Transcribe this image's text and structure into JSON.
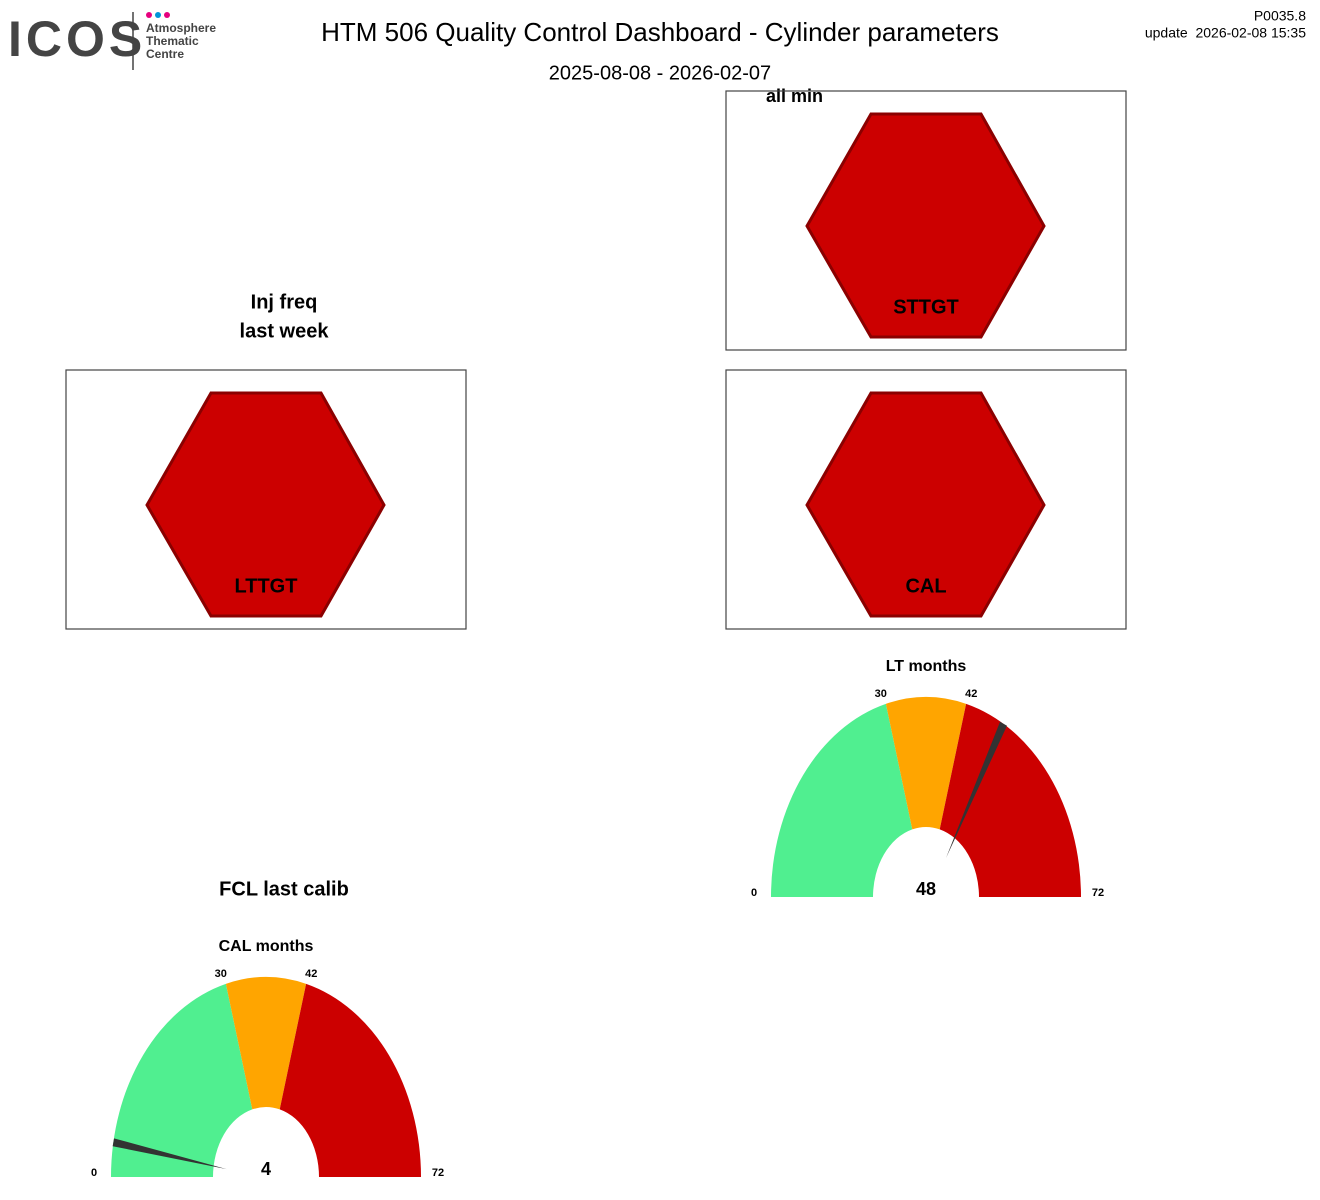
{
  "header": {
    "logo": "ICOS",
    "logo_lines": [
      "Atmosphere",
      "Thematic",
      "Centre"
    ],
    "title": "HTM 506 Quality Control Dashboard - Cylinder parameters",
    "subtitle": "2025-08-08 - 2026-02-07",
    "version": "P0035.8",
    "update": "update  2026-02-08 15:35"
  },
  "panels": [
    {
      "title": "all min",
      "label": "STTGT"
    },
    {
      "label": "LTTGT"
    },
    {
      "label": "CAL"
    }
  ],
  "section_titles": [
    "Inj freq",
    "last week",
    "FCL last calib"
  ],
  "chart_data": [
    {
      "type": "gauge",
      "title": "LT months",
      "value": 48,
      "ticks": [
        0,
        30,
        42,
        72
      ],
      "colors": [
        "#50ef90",
        "#ffa500",
        "#cc0000"
      ]
    },
    {
      "type": "gauge",
      "title": "CAL months",
      "value": 4,
      "ticks": [
        0,
        30,
        42,
        72
      ],
      "colors": [
        "#50ef90",
        "#ffa500",
        "#cc0000"
      ]
    }
  ]
}
